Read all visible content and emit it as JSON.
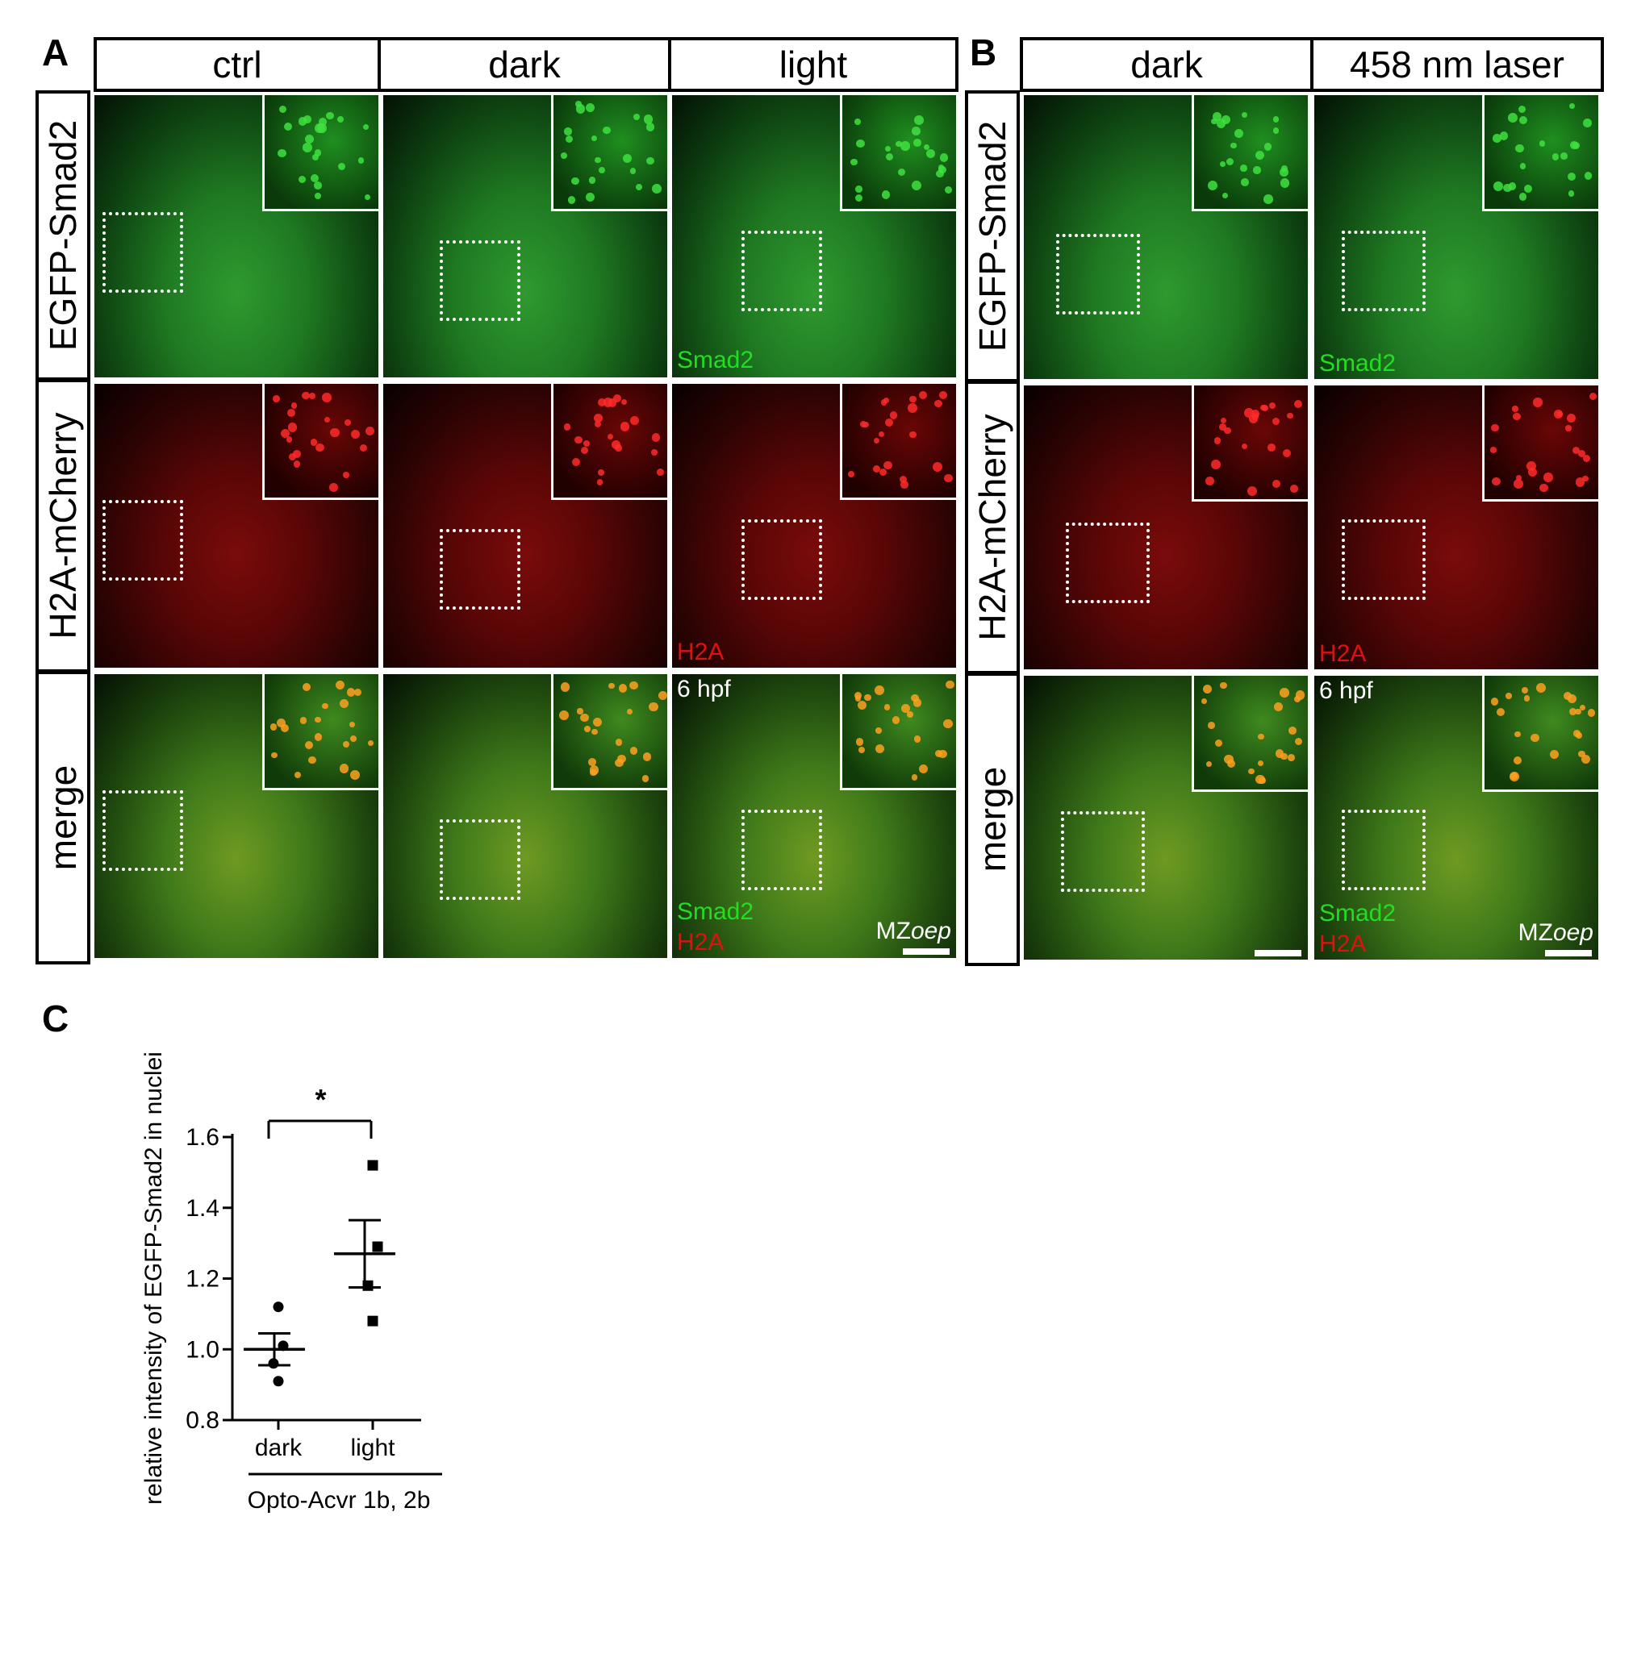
{
  "panel_labels": {
    "a": "A",
    "b": "B",
    "c": "C"
  },
  "panel_a": {
    "columns": [
      "ctrl",
      "dark",
      "light"
    ],
    "rows": [
      "EGFP-Smad2",
      "H2A-mCherry",
      "merge"
    ],
    "overlay": {
      "smad2": "Smad2",
      "h2a": "H2A",
      "stage": "6 hpf",
      "genotype_prefix": "MZ",
      "genotype_italic": "oep"
    }
  },
  "panel_b": {
    "columns": [
      "dark",
      "458 nm laser"
    ],
    "rows": [
      "EGFP-Smad2",
      "H2A-mCherry",
      "merge"
    ],
    "overlay": {
      "smad2": "Smad2",
      "h2a": "H2A",
      "stage": "6 hpf",
      "genotype_prefix": "MZ",
      "genotype_italic": "oep"
    }
  },
  "colors": {
    "smad2_green": "#22dd22",
    "h2a_red": "#e01010",
    "white": "#ffffff"
  },
  "chart_data": {
    "type": "scatter",
    "ylabel": "relative intensity of EGFP-Smad2 in nuclei",
    "categories": [
      "dark",
      "light"
    ],
    "group_label": "Opto-Acvr 1b, 2b",
    "ylim": [
      0.8,
      1.6
    ],
    "yticks": [
      "0.8",
      "1.0",
      "1.2",
      "1.4",
      "1.6"
    ],
    "significance": "*",
    "series": [
      {
        "category": "dark",
        "marker": "circle",
        "points": [
          1.12,
          1.01,
          0.96,
          0.91
        ],
        "mean": 1.0,
        "sem": 0.045
      },
      {
        "category": "light",
        "marker": "square",
        "points": [
          1.52,
          1.29,
          1.18,
          1.08
        ],
        "mean": 1.27,
        "sem": 0.095
      }
    ]
  }
}
